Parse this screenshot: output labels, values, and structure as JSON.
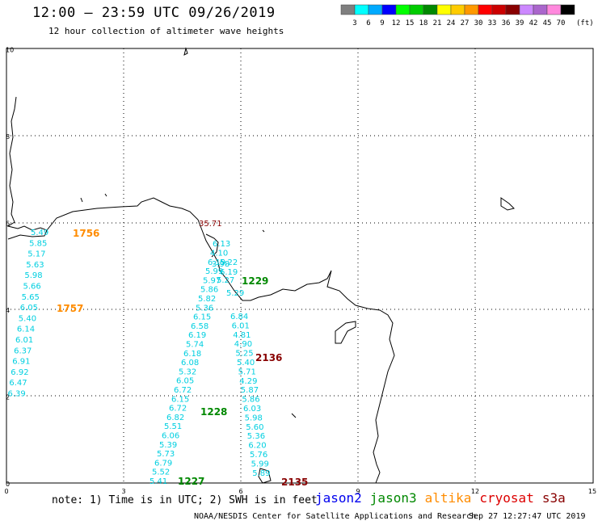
{
  "header": {
    "title": "12:00 – 23:59 UTC 09/26/2019",
    "subtitle": "12 hour collection of altimeter wave heights"
  },
  "legend": {
    "unit": "(ft)",
    "bins": [
      {
        "label": "3",
        "color": "#7f7f7f"
      },
      {
        "label": "6",
        "color": "#00ffff"
      },
      {
        "label": "9",
        "color": "#00aaff"
      },
      {
        "label": "12",
        "color": "#0000ff"
      },
      {
        "label": "15",
        "color": "#00ff00"
      },
      {
        "label": "18",
        "color": "#00cc00"
      },
      {
        "label": "21",
        "color": "#008800"
      },
      {
        "label": "24",
        "color": "#ffff00"
      },
      {
        "label": "27",
        "color": "#ffcc00"
      },
      {
        "label": "30",
        "color": "#ff9900"
      },
      {
        "label": "33",
        "color": "#ff0000"
      },
      {
        "label": "36",
        "color": "#cc0000"
      },
      {
        "label": "39",
        "color": "#880000"
      },
      {
        "label": "42",
        "color": "#cc88ff"
      },
      {
        "label": "45",
        "color": "#aa66cc"
      },
      {
        "label": "70",
        "color": "#ff88dd"
      },
      {
        "label": "",
        "color": "#000000"
      }
    ]
  },
  "axes": {
    "x_ticks": [
      "0",
      "3",
      "6",
      "9",
      "12",
      "15"
    ],
    "y_ticks": [
      "0",
      "2",
      "4",
      "6",
      "8",
      "10"
    ]
  },
  "tracks": {
    "track_a": [
      "5.49",
      "5.85",
      "5.17",
      "5.63",
      "5.98",
      "5.66",
      "5.65",
      "6.05",
      "5.40",
      "6.14",
      "6.01",
      "6.37",
      "6.91",
      "6.92",
      "6.47",
      "6.39"
    ],
    "track_b": [
      "5.41",
      "5.52",
      "6.79",
      "5.73",
      "5.39",
      "6.06",
      "5.51",
      "6.82",
      "6.72",
      "6.15",
      "6.72",
      "6.05",
      "5.32",
      "6.08",
      "6.18",
      "5.74",
      "6.19",
      "6.58",
      "6.15",
      "5.36",
      "5.82",
      "5.86",
      "5.97",
      "5.99",
      "6.19",
      "4.10",
      "6.13"
    ],
    "track_c": [
      "6.84",
      "6.01",
      "4.81",
      "4.90",
      "5.25",
      "5.40",
      "5.71",
      "4.29",
      "5.87",
      "5.86",
      "6.03",
      "5.98",
      "5.60",
      "5.36",
      "6.20",
      "5.76",
      "5.99",
      "5.89"
    ],
    "misc_top": "35.71",
    "misc_labels": [
      "3.98",
      "5.22",
      "6.19",
      "5.27",
      "5.29"
    ]
  },
  "pass_labels": [
    {
      "text": "1756",
      "color": "#ff8c00"
    },
    {
      "text": "1757",
      "color": "#ff8c00"
    },
    {
      "text": "1229",
      "color": "#008800"
    },
    {
      "text": "2136",
      "color": "#880000"
    },
    {
      "text": "1228",
      "color": "#008800"
    },
    {
      "text": "1227",
      "color": "#008800"
    },
    {
      "text": "2135",
      "color": "#880000"
    }
  ],
  "footer": {
    "note": "note: 1) Time is in UTC; 2) SWH is in feet",
    "satellites": [
      {
        "name": "jason2",
        "color": "#0000ee"
      },
      {
        "name": "jason3",
        "color": "#008800"
      },
      {
        "name": "altika",
        "color": "#ff8c00"
      },
      {
        "name": "cryosat",
        "color": "#dd0000"
      },
      {
        "name": "s3a",
        "color": "#880000"
      }
    ],
    "credit": "NOAA/NESDIS Center for Satellite Applications and Research",
    "timestamp": "Sep 27 12:27:47 UTC 2019"
  }
}
